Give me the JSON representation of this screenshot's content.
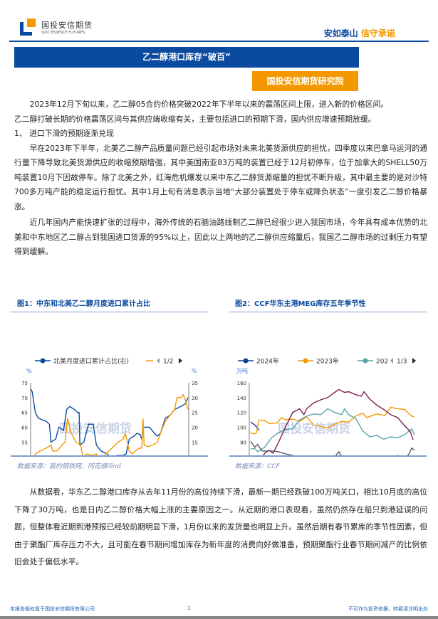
{
  "header": {
    "logo_cn": "国投安信期货",
    "logo_en": "SDIC ESSENCE FUTURES",
    "slogan_a": "安如泰山",
    "slogan_b": "信守承诺"
  },
  "title": "乙二醇港口库存“破百”",
  "institute": "国投安信期货研究院",
  "paragraphs": [
    "2023年12月下旬以来，乙二醇05合约价格突破2022年下半年以来的震荡区间上限，进入新的价格区间。",
    "乙二醇打破长期的价格震荡区间与其供应端收缩有关，主要包括进口的预期下滑，国内供应增速预期放缓。",
    "1、 进口下滑的预期逐渐兑现",
    "早在2023年下半年，北美乙二醇产品质量问题已经引起市场对未来北美货源供应的担忧，四季度以来巴拿马运河的通行量下降导致北美货源供应的收缩预期增强，其中美国南亚83万吨的装置已经于12月初停车，位于加拿大的SHELL50万吨装置10月下因故停车。除了北美之外，红海危机爆发以来中东乙二醇货源缩量的担忧不断升级，其中最主要的是对沙特700多万吨产能的稳定运行担忧。其中1月上旬有消息表示当地“大部分装置处于停车或降负状态”一度引发乙二醇价格暴涨。",
    "近几年国内产能快速扩张的过程中，海外传统的石脑油路线制乙二醇已经很少进入我国市场，今年具有成本优势的北美和中东地区乙二醇占到我国进口货源的95%以上，因此以上两地的乙二醇供应缩量后，我国乙二醇市场的过剩压力有望得到缓解。",
    "从数据看，华东乙二醇港口库存从去年11月份的高位持续下滑，最新一期已经跌破100万吨关口，相比10月底的高位下降了30万吨，也是日内乙二醇价格大幅上涨的主要原因之一。从近期的港口表现看，虽然仍然存在船只到港延误的问题，但整体看近期到港预报已经较前期明显下滑，1月份以来的发货量也明显上升。虽然后期有春节累库的季节性因素，但由于聚酯厂库存压力不大，且可能在春节期间增加库存为新年度的消费向好做准备，预期聚酯行业春节期间减产的比例依旧会处于偏低水平。"
  ],
  "fig1": {
    "title": "图1：中东和北美乙二醇月度进口累计占比",
    "legend": "北美月度进口累计占比(右)",
    "pager": "1/2",
    "source": "数据来源：我的钢铁网，同花顺ifind"
  },
  "fig2": {
    "title": "图2：CCF华东主港MEG库存五年季节性",
    "pager": "1/3",
    "source": "数据来源：CCF"
  },
  "watermark": "国投安信期货",
  "footer": {
    "left": "本报告版权属于国投安信期货有限公司",
    "page": "1",
    "right": "不可作为投资依据，转载请注明出处"
  },
  "chart_data": [
    {
      "type": "line",
      "title": "图1：中东和北美乙二醇月度进口累计占比",
      "ylabel": "%",
      "y2label": "%",
      "ylim": [
        45,
        75
      ],
      "y2lim": [
        5,
        35
      ],
      "xlim": [
        2014.0,
        2024.1
      ],
      "xticks": [
        {
          "x": 2014.0,
          "label": "2014年1月"
        },
        {
          "x": 2016.17,
          "label": "2016年3月"
        },
        {
          "x": 2018.33,
          "label": "2018年5月"
        },
        {
          "x": 2020.5,
          "label": "2020年7月"
        },
        {
          "x": 2022.67,
          "label": "2022年9月"
        }
      ],
      "yticks": [
        45,
        50,
        55,
        60,
        65,
        70,
        75
      ],
      "y2ticks": [
        5,
        10,
        15,
        20,
        25,
        30,
        35
      ],
      "series": [
        {
          "name": "北美月度进口累计占比(右)",
          "color": "#0a4a9f",
          "axis": "left",
          "points": [
            [
              2014.0,
              73
            ],
            [
              2014.1,
              72
            ],
            [
              2014.3,
              65
            ],
            [
              2014.5,
              63
            ],
            [
              2015.0,
              62
            ],
            [
              2015.2,
              61
            ],
            [
              2015.3,
              55
            ],
            [
              2015.6,
              56
            ],
            [
              2015.8,
              60
            ],
            [
              2016.1,
              59
            ],
            [
              2016.3,
              66
            ],
            [
              2016.5,
              67
            ],
            [
              2016.8,
              66
            ],
            [
              2017.0,
              65
            ],
            [
              2017.1,
              65
            ],
            [
              2017.15,
              54
            ],
            [
              2017.4,
              55
            ],
            [
              2017.7,
              61
            ],
            [
              2018.0,
              61
            ],
            [
              2018.2,
              54
            ],
            [
              2018.5,
              52
            ],
            [
              2018.9,
              51
            ],
            [
              2019.2,
              49
            ],
            [
              2019.5,
              50.5
            ],
            [
              2019.9,
              50.5
            ],
            [
              2020.1,
              51
            ],
            [
              2020.3,
              56
            ],
            [
              2020.6,
              57
            ],
            [
              2020.8,
              58
            ],
            [
              2021.0,
              57.5
            ],
            [
              2021.1,
              56
            ],
            [
              2021.2,
              60
            ],
            [
              2021.6,
              60
            ],
            [
              2021.9,
              58
            ],
            [
              2022.1,
              57
            ],
            [
              2022.3,
              58
            ],
            [
              2022.6,
              63
            ],
            [
              2022.9,
              64
            ],
            [
              2023.2,
              66
            ],
            [
              2023.6,
              67
            ],
            [
              2023.9,
              68
            ],
            [
              2024.05,
              70
            ]
          ]
        },
        {
          "name": "",
          "color": "#f39800",
          "axis": "right",
          "points": [
            [
              2014.0,
              9
            ],
            [
              2014.1,
              8
            ],
            [
              2014.3,
              11
            ],
            [
              2014.6,
              12
            ],
            [
              2015.0,
              13
            ],
            [
              2015.3,
              14
            ],
            [
              2015.4,
              12
            ],
            [
              2015.7,
              12
            ],
            [
              2016.0,
              14
            ],
            [
              2016.2,
              15
            ],
            [
              2016.35,
              23
            ],
            [
              2016.6,
              18
            ],
            [
              2016.9,
              15
            ],
            [
              2017.2,
              14
            ],
            [
              2017.35,
              10
            ],
            [
              2017.6,
              11
            ],
            [
              2017.9,
              10.5
            ],
            [
              2018.2,
              11
            ],
            [
              2018.4,
              8
            ],
            [
              2018.8,
              11
            ],
            [
              2019.2,
              13
            ],
            [
              2019.6,
              15
            ],
            [
              2019.9,
              16
            ],
            [
              2020.05,
              18
            ],
            [
              2020.3,
              12
            ],
            [
              2020.5,
              11
            ],
            [
              2020.8,
              12.5
            ],
            [
              2021.0,
              13
            ],
            [
              2021.1,
              13
            ],
            [
              2021.18,
              23
            ],
            [
              2021.25,
              14
            ],
            [
              2021.5,
              13.5
            ],
            [
              2021.8,
              14
            ],
            [
              2022.1,
              15
            ],
            [
              2022.3,
              18
            ],
            [
              2022.6,
              22
            ],
            [
              2022.9,
              24
            ],
            [
              2023.2,
              26
            ],
            [
              2023.35,
              30
            ],
            [
              2023.6,
              30
            ],
            [
              2023.75,
              31
            ],
            [
              2023.9,
              29
            ],
            [
              2024.05,
              26
            ]
          ]
        }
      ]
    },
    {
      "type": "line",
      "title": "图2：CCF华东主港MEG库存五年季节性",
      "ylabel": "万吨",
      "ylim": [
        40,
        160
      ],
      "xlim": [
        0.9,
        12.8
      ],
      "xticks": [
        {
          "x": 1,
          "label": "1月"
        },
        {
          "x": 3,
          "label": "3月"
        },
        {
          "x": 5,
          "label": "5月"
        },
        {
          "x": 7,
          "label": "7月"
        },
        {
          "x": 9,
          "label": "9月"
        },
        {
          "x": 11,
          "label": "11月"
        }
      ],
      "yticks": [
        40,
        60,
        80,
        100,
        120,
        140,
        160
      ],
      "series": [
        {
          "name": "2024年",
          "color": "#0a3d91",
          "points": [
            [
              1,
              107
            ],
            [
              1.3,
              103
            ],
            [
              1.6,
              96
            ]
          ]
        },
        {
          "name": "2023年",
          "color": "#f39800",
          "points": [
            [
              1,
              93
            ],
            [
              1.2,
              91
            ],
            [
              1.4,
              92
            ],
            [
              1.6,
              110
            ],
            [
              2,
              109
            ],
            [
              2.3,
              105
            ],
            [
              2.9,
              106
            ],
            [
              3.2,
              113
            ],
            [
              3.5,
              110
            ],
            [
              4,
              111
            ],
            [
              4.5,
              108
            ],
            [
              5,
              114
            ],
            [
              5.5,
              103
            ],
            [
              6,
              101
            ],
            [
              6.5,
              99
            ],
            [
              7,
              104
            ],
            [
              7.5,
              108
            ],
            [
              8,
              107
            ],
            [
              8.5,
              115
            ],
            [
              9,
              119
            ],
            [
              9.3,
              113
            ],
            [
              9.7,
              116
            ],
            [
              10,
              118
            ],
            [
              10.6,
              116
            ],
            [
              11,
              127
            ],
            [
              11.5,
              125
            ],
            [
              12,
              124
            ],
            [
              12.5,
              115
            ],
            [
              12.7,
              114
            ]
          ]
        },
        {
          "name": "202",
          "color": "#5aa3a8",
          "points": [
            [
              1,
              71
            ],
            [
              1.3,
              71
            ],
            [
              1.5,
              67
            ],
            [
              2,
              73
            ],
            [
              2.5,
              86
            ],
            [
              3,
              93
            ],
            [
              3.5,
              97
            ],
            [
              4,
              98
            ],
            [
              4.5,
              110
            ],
            [
              5,
              115
            ],
            [
              5.5,
              118
            ],
            [
              6,
              117
            ],
            [
              6.5,
              125
            ],
            [
              7,
              120
            ],
            [
              7.5,
              117
            ],
            [
              7.7,
              125
            ],
            [
              8,
              117
            ],
            [
              8.5,
              112
            ],
            [
              9,
              95
            ],
            [
              9.5,
              87
            ],
            [
              10,
              89
            ],
            [
              10.5,
              84
            ],
            [
              11,
              87
            ],
            [
              11.5,
              86
            ],
            [
              12,
              90
            ],
            [
              12.5,
              98
            ],
            [
              12.7,
              90
            ]
          ]
        },
        {
          "color": "#7a1f4f",
          "points": [
            [
              1,
              44
            ],
            [
              1.3,
              44
            ],
            [
              1.5,
              45
            ],
            [
              1.8,
              58
            ],
            [
              2,
              65
            ],
            [
              2.3,
              69
            ],
            [
              2.6,
              65
            ],
            [
              3,
              80
            ],
            [
              3.5,
              101
            ],
            [
              4,
              120
            ],
            [
              4.5,
              125
            ],
            [
              4.8,
              117
            ],
            [
              5,
              125
            ],
            [
              5.5,
              133
            ],
            [
              6,
              137
            ],
            [
              6.5,
              140
            ],
            [
              7,
              147
            ],
            [
              7.3,
              151
            ],
            [
              7.7,
              147
            ],
            [
              8,
              148
            ],
            [
              8.5,
              144
            ],
            [
              8.9,
              142
            ],
            [
              9.1,
              148
            ],
            [
              9.5,
              138
            ],
            [
              10,
              130
            ],
            [
              10.5,
              124
            ],
            [
              11,
              117
            ],
            [
              11.5,
              113
            ],
            [
              12,
              102
            ],
            [
              12.4,
              94
            ],
            [
              12.6,
              83
            ]
          ]
        },
        {
          "color": "#4a5a64",
          "points": [
            [
              1,
              81
            ],
            [
              1.3,
              73
            ],
            [
              1.5,
              77
            ],
            [
              1.8,
              68
            ],
            [
              2.5,
              68
            ],
            [
              3,
              67
            ],
            [
              3.5,
              64
            ],
            [
              4,
              62
            ],
            [
              4.5,
              55
            ],
            [
              5,
              57
            ],
            [
              5.5,
              55
            ],
            [
              6,
              53
            ],
            [
              6.5,
              58
            ],
            [
              7,
              60
            ],
            [
              7.3,
              67
            ],
            [
              7.6,
              58
            ],
            [
              8,
              54
            ],
            [
              8.5,
              52
            ],
            [
              9,
              58
            ],
            [
              9.5,
              56
            ],
            [
              10,
              50
            ],
            [
              10.5,
              53
            ],
            [
              11,
              59
            ],
            [
              11.5,
              62
            ],
            [
              12,
              57
            ],
            [
              12.3,
              64
            ],
            [
              12.5,
              72
            ],
            [
              12.7,
              69
            ]
          ]
        }
      ]
    }
  ]
}
